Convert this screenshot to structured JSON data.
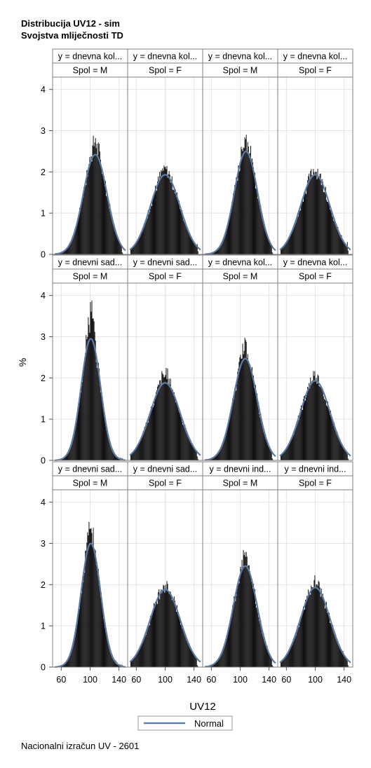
{
  "titles": [
    "Distribucija UV12 - sim",
    "Svojstva mliječnosti TD"
  ],
  "footnote": "Nacionalni izračun UV - 2601",
  "chart_data": {
    "type": "histogram-panel",
    "xlabel": "UV12",
    "ylabel": "%",
    "xlim": [
      48,
      152
    ],
    "ylim": [
      0,
      4.3
    ],
    "x_ticks": [
      60,
      100,
      140
    ],
    "y_ticks": [
      0,
      1,
      2,
      3,
      4
    ],
    "legend": {
      "placement": "bottom",
      "entries": [
        "Normal"
      ]
    },
    "normal_curve_color": "#5b7ba3",
    "bar_color": "#000000",
    "rows": [
      [
        {
          "label": "y = dnevna kol...",
          "spol": "Spol = M",
          "mean": 107,
          "sd": 16.5,
          "peak": 2.42,
          "hist_max": 2.92,
          "right_spike": 0.05
        },
        {
          "label": "y = dnevna kol...",
          "spol": "Spol = F",
          "mean": 100,
          "sd": 20.5,
          "peak": 1.93,
          "hist_max": 2.12,
          "right_spike": 0.25
        },
        {
          "label": "y = dnevna kol...",
          "spol": "Spol = M",
          "mean": 108,
          "sd": 16.0,
          "peak": 2.5,
          "hist_max": 3.05,
          "right_spike": 0.05
        },
        {
          "label": "y = dnevna kol...",
          "spol": "Spol = F",
          "mean": 100,
          "sd": 20.5,
          "peak": 1.93,
          "hist_max": 2.12,
          "right_spike": 0.3
        }
      ],
      [
        {
          "label": "y = dnevni sad...",
          "spol": "Spol = M",
          "mean": 101,
          "sd": 13.5,
          "peak": 2.95,
          "hist_max": 4.08,
          "right_spike": 0.05
        },
        {
          "label": "y = dnevni sad...",
          "spol": "Spol = F",
          "mean": 100,
          "sd": 21.0,
          "peak": 1.88,
          "hist_max": 2.22,
          "right_spike": 0.1
        },
        {
          "label": "y = dnevna kol...",
          "spol": "Spol = M",
          "mean": 107,
          "sd": 16.5,
          "peak": 2.47,
          "hist_max": 3.02,
          "right_spike": 0.05
        },
        {
          "label": "y = dnevna kol...",
          "spol": "Spol = F",
          "mean": 100,
          "sd": 20.5,
          "peak": 1.93,
          "hist_max": 2.14,
          "right_spike": 0.15
        }
      ],
      [
        {
          "label": "y = dnevni sad...",
          "spol": "Spol = M",
          "mean": 101,
          "sd": 13.5,
          "peak": 3.0,
          "hist_max": 3.67,
          "right_spike": 0.05
        },
        {
          "label": "y = dnevni sad...",
          "spol": "Spol = F",
          "mean": 100,
          "sd": 21.0,
          "peak": 1.88,
          "hist_max": 2.08,
          "right_spike": 0.05
        },
        {
          "label": "y = dnevni ind...",
          "spol": "Spol = M",
          "mean": 107,
          "sd": 16.5,
          "peak": 2.45,
          "hist_max": 2.9,
          "right_spike": 0.05
        },
        {
          "label": "y = dnevni ind...",
          "spol": "Spol = F",
          "mean": 100,
          "sd": 20.5,
          "peak": 1.93,
          "hist_max": 2.14,
          "right_spike": 0.15
        }
      ]
    ]
  }
}
